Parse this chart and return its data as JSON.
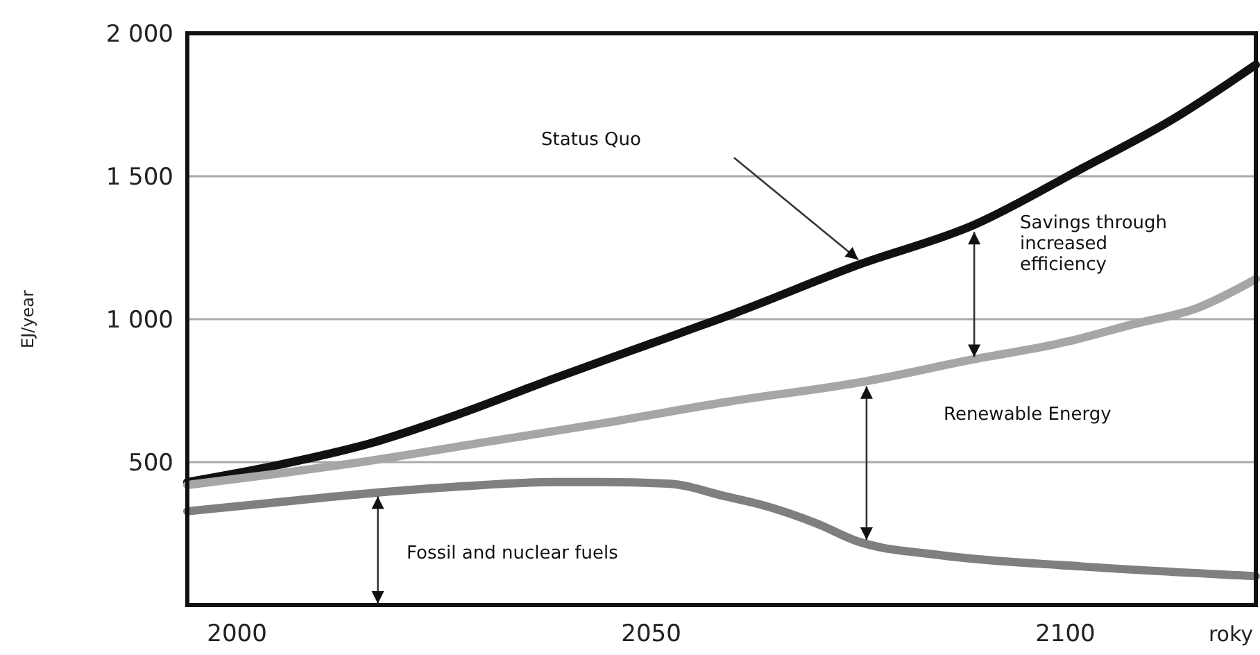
{
  "chart_data": {
    "type": "line",
    "ylabel": "EJ/year",
    "xlabel": "roky",
    "xlim": [
      1994,
      2123
    ],
    "xticks": [
      2000,
      2050,
      2100
    ],
    "ylim": [
      0,
      2000
    ],
    "yticks": [
      {
        "value": 500,
        "label": "500"
      },
      {
        "value": 1000,
        "label": "1 000"
      },
      {
        "value": 1500,
        "label": "1 500"
      },
      {
        "value": 2000,
        "label": "2 000"
      }
    ],
    "grid": "y",
    "line_style": "solid",
    "marker": "none",
    "series": [
      {
        "color": "#111111",
        "x": [
          1994,
          2005,
          2016,
          2027,
          2038,
          2050,
          2060,
          2075,
          2089,
          2102,
          2113,
          2123
        ],
        "values": [
          430,
          490,
          565,
          670,
          790,
          915,
          1020,
          1190,
          1330,
          1527,
          1700,
          1890
        ]
      },
      {
        "color": "#a6a6a6",
        "x": [
          1994,
          2005,
          2015,
          2030,
          2045,
          2059,
          2075,
          2089,
          2100,
          2108,
          2116,
          2123
        ],
        "values": [
          420,
          460,
          500,
          570,
          640,
          710,
          778,
          860,
          920,
          981,
          1040,
          1140
        ]
      },
      {
        "color": "#7f7f7f",
        "x": [
          1994,
          2005,
          2016,
          2027,
          2038,
          2044,
          2052,
          2059,
          2063,
          2070,
          2075,
          2085,
          2102,
          2123
        ],
        "values": [
          328,
          360,
          391,
          415,
          430,
          430,
          425,
          380,
          353,
          285,
          222,
          174,
          135,
          101
        ]
      }
    ],
    "annotations": [
      "Status Quo",
      "Savings through increased efficiency",
      "Renewable Energy",
      "Fossil and nuclear fuels"
    ]
  }
}
